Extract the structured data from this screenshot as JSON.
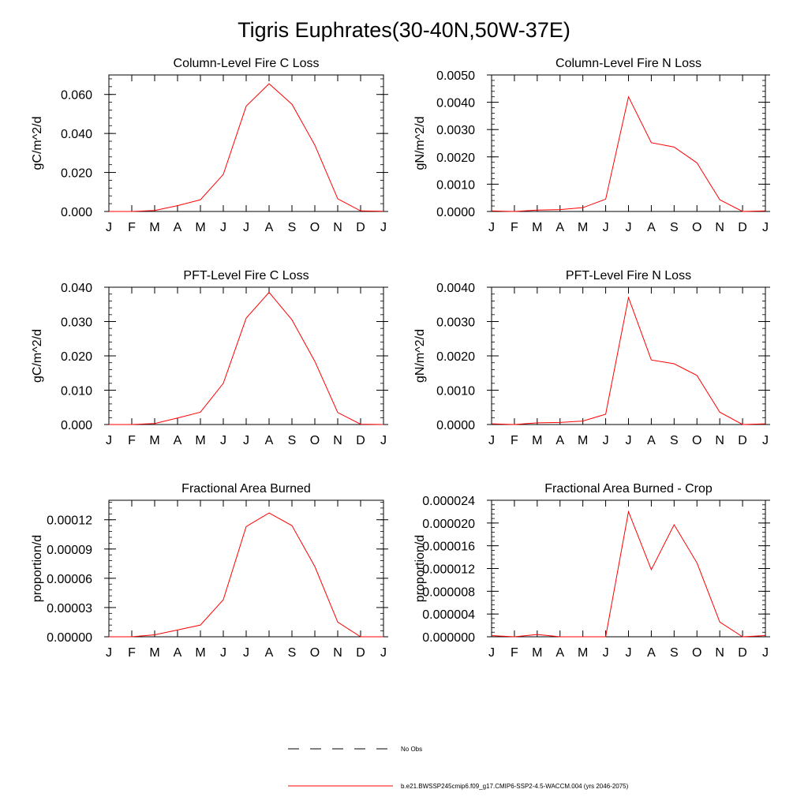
{
  "page": {
    "title": "Tigris Euphrates(30-40N,50W-37E)"
  },
  "legend": {
    "items": [
      {
        "label": "No Obs",
        "style": "dashed",
        "color": "#000000"
      },
      {
        "label": "b.e21.BWSSP245cmip6.f09_g17.CMIP6-SSP2-4.5-WACCM.004 (yrs 2046-2075)",
        "style": "solid",
        "color": "#ff0000"
      }
    ]
  },
  "chart_data": [
    {
      "type": "line",
      "title": "Column-Level Fire C Loss",
      "ylabel": "gC/m^2/d",
      "categories": [
        "J",
        "F",
        "M",
        "A",
        "M",
        "J",
        "J",
        "A",
        "S",
        "O",
        "N",
        "D",
        "J"
      ],
      "ylim": [
        0,
        0.07
      ],
      "yticks": [
        0.0,
        0.02,
        0.04,
        0.06
      ],
      "ytick_labels": [
        "0.000",
        "0.020",
        "0.040",
        "0.060"
      ],
      "series": [
        {
          "color": "#ff0000",
          "values": [
            0.0,
            0.0,
            0.0005,
            0.003,
            0.006,
            0.019,
            0.054,
            0.0655,
            0.055,
            0.034,
            0.0065,
            0.0003,
            0.0001
          ]
        }
      ]
    },
    {
      "type": "line",
      "title": "Column-Level Fire N Loss",
      "ylabel": "gN/m^2/d",
      "categories": [
        "J",
        "F",
        "M",
        "A",
        "M",
        "J",
        "J",
        "A",
        "S",
        "O",
        "N",
        "D",
        "J"
      ],
      "ylim": [
        0,
        0.005
      ],
      "yticks": [
        0.0,
        0.001,
        0.002,
        0.003,
        0.004,
        0.005
      ],
      "ytick_labels": [
        "0.0000",
        "0.0010",
        "0.0020",
        "0.0030",
        "0.0040",
        "0.0050"
      ],
      "series": [
        {
          "color": "#ff0000",
          "values": [
            2e-05,
            0.0,
            5e-05,
            7e-05,
            0.00014,
            0.00045,
            0.0042,
            0.00252,
            0.00236,
            0.00178,
            0.00043,
            0.0,
            2e-05
          ]
        }
      ]
    },
    {
      "type": "line",
      "title": "PFT-Level Fire C Loss",
      "ylabel": "gC/m^2/d",
      "categories": [
        "J",
        "F",
        "M",
        "A",
        "M",
        "J",
        "J",
        "A",
        "S",
        "O",
        "N",
        "D",
        "J"
      ],
      "ylim": [
        0,
        0.04
      ],
      "yticks": [
        0.0,
        0.01,
        0.02,
        0.03,
        0.04
      ],
      "ytick_labels": [
        "0.000",
        "0.010",
        "0.020",
        "0.030",
        "0.040"
      ],
      "series": [
        {
          "color": "#ff0000",
          "values": [
            0.0,
            0.0,
            0.0003,
            0.0019,
            0.0036,
            0.012,
            0.031,
            0.0385,
            0.0305,
            0.0184,
            0.0035,
            0.0001,
            0.0
          ]
        }
      ]
    },
    {
      "type": "line",
      "title": "PFT-Level Fire N Loss",
      "ylabel": "gN/m^2/d",
      "categories": [
        "J",
        "F",
        "M",
        "A",
        "M",
        "J",
        "J",
        "A",
        "S",
        "O",
        "N",
        "D",
        "J"
      ],
      "ylim": [
        0,
        0.004
      ],
      "yticks": [
        0.0,
        0.001,
        0.002,
        0.003,
        0.004
      ],
      "ytick_labels": [
        "0.0000",
        "0.0010",
        "0.0020",
        "0.0030",
        "0.0040"
      ],
      "series": [
        {
          "color": "#ff0000",
          "values": [
            2e-05,
            0.0,
            5e-05,
            6e-05,
            0.0001,
            0.0003,
            0.0037,
            0.00188,
            0.00177,
            0.00143,
            0.00036,
            0.0,
            2e-05
          ]
        }
      ]
    },
    {
      "type": "line",
      "title": "Fractional Area Burned",
      "ylabel": "proportion/d",
      "categories": [
        "J",
        "F",
        "M",
        "A",
        "M",
        "J",
        "J",
        "A",
        "S",
        "O",
        "N",
        "D",
        "J"
      ],
      "ylim": [
        0,
        0.00014
      ],
      "yticks": [
        0.0,
        3e-05,
        6e-05,
        9e-05,
        0.00012
      ],
      "ytick_labels": [
        "0.00000",
        "0.00003",
        "0.00006",
        "0.00009",
        "0.00012"
      ],
      "series": [
        {
          "color": "#ff0000",
          "values": [
            0.0,
            0.0,
            2e-06,
            7e-06,
            1.2e-05,
            3.8e-05,
            0.000113,
            0.000127,
            0.000114,
            7.2e-05,
            1.5e-05,
            0.0,
            0.0
          ]
        }
      ]
    },
    {
      "type": "line",
      "title": "Fractional Area Burned - Crop",
      "ylabel": "proportion/d",
      "categories": [
        "J",
        "F",
        "M",
        "A",
        "M",
        "J",
        "J",
        "A",
        "S",
        "O",
        "N",
        "D",
        "J"
      ],
      "ylim": [
        0,
        2.4e-05
      ],
      "yticks": [
        0.0,
        4e-06,
        8e-06,
        1.2e-05,
        1.6e-05,
        2e-05,
        2.4e-05
      ],
      "ytick_labels": [
        "0.000000",
        "0.000004",
        "0.000008",
        "0.000012",
        "0.000016",
        "0.000020",
        "0.000024"
      ],
      "series": [
        {
          "color": "#ff0000",
          "values": [
            2e-07,
            0.0,
            4e-07,
            0.0,
            0.0,
            0.0,
            2.2e-05,
            1.18e-05,
            1.97e-05,
            1.3e-05,
            2.6e-06,
            0.0,
            2e-07
          ]
        }
      ]
    }
  ]
}
